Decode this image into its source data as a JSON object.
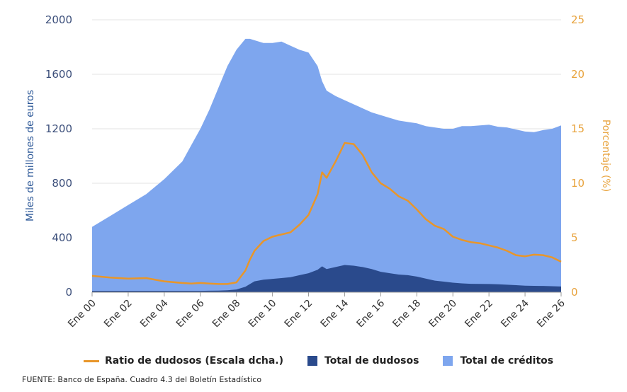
{
  "chart_data": {
    "type": "area",
    "title": "",
    "x": [
      2000,
      2001,
      2002,
      2003,
      2004,
      2005,
      2005.5,
      2006,
      2006.5,
      2007,
      2007.5,
      2008,
      2008.5,
      2008.75,
      2009,
      2009.5,
      2010,
      2010.5,
      2011,
      2011.5,
      2012,
      2012.5,
      2012.75,
      2013,
      2013.5,
      2014,
      2014.5,
      2015,
      2015.5,
      2016,
      2016.5,
      2017,
      2017.5,
      2018,
      2018.5,
      2019,
      2019.5,
      2020,
      2020.5,
      2021,
      2021.5,
      2022,
      2022.5,
      2023,
      2023.5,
      2024,
      2024.5,
      2025,
      2025.5,
      2026
    ],
    "x_ticks": [
      "Ene 00",
      "Ene 02",
      "Ene 04",
      "Ene 06",
      "Ene 08",
      "Ene 10",
      "Ene 12",
      "Ene 14",
      "Ene 16",
      "Ene 18",
      "Ene 20",
      "Ene 22",
      "Ene 24",
      "Ene 26"
    ],
    "x_tick_values": [
      2000,
      2002,
      2004,
      2006,
      2008,
      2010,
      2012,
      2014,
      2016,
      2018,
      2020,
      2022,
      2024,
      2026
    ],
    "left_axis": {
      "label": "Miles de millones de euros",
      "ylim": [
        0,
        2000
      ],
      "ticks": [
        "0",
        "400",
        "800",
        "1200",
        "1600",
        "2000"
      ],
      "tick_values": [
        0,
        400,
        800,
        1200,
        1600,
        2000
      ]
    },
    "right_axis": {
      "label": "Porcentaje (%)",
      "ylim": [
        0,
        25
      ],
      "ticks": [
        "0",
        "5",
        "10",
        "15",
        "20",
        "25"
      ],
      "tick_values": [
        0,
        5,
        10,
        15,
        20,
        25
      ]
    },
    "series": [
      {
        "name": "Total de créditos",
        "axis": "left",
        "color": "#7ea6ee",
        "values": [
          480,
          560,
          640,
          720,
          830,
          960,
          1080,
          1200,
          1340,
          1500,
          1660,
          1780,
          1860,
          1860,
          1850,
          1830,
          1830,
          1840,
          1810,
          1780,
          1760,
          1660,
          1550,
          1480,
          1440,
          1410,
          1380,
          1350,
          1320,
          1300,
          1280,
          1260,
          1250,
          1240,
          1220,
          1210,
          1200,
          1200,
          1220,
          1220,
          1225,
          1230,
          1215,
          1210,
          1195,
          1180,
          1175,
          1190,
          1200,
          1225
        ]
      },
      {
        "name": "Total de dudosos",
        "axis": "left",
        "color": "#2a4a8c",
        "values": [
          10,
          10,
          10,
          10,
          10,
          10,
          10,
          10,
          11,
          12,
          14,
          20,
          40,
          60,
          80,
          92,
          98,
          104,
          110,
          125,
          140,
          165,
          190,
          170,
          185,
          200,
          195,
          185,
          170,
          150,
          140,
          130,
          125,
          115,
          100,
          85,
          78,
          70,
          65,
          62,
          61,
          60,
          58,
          55,
          52,
          48,
          47,
          46,
          44,
          42
        ]
      },
      {
        "name": "Ratio de dudosos (Escala dcha.)",
        "axis": "right",
        "color": "#e8962a",
        "values": [
          1.5,
          1.35,
          1.25,
          1.3,
          1.0,
          0.85,
          0.8,
          0.85,
          0.8,
          0.75,
          0.75,
          0.9,
          2.0,
          3.0,
          3.8,
          4.7,
          5.1,
          5.3,
          5.5,
          6.2,
          7.1,
          9.0,
          11.0,
          10.5,
          12.0,
          13.7,
          13.6,
          12.6,
          11.0,
          10.0,
          9.5,
          8.8,
          8.4,
          7.6,
          6.7,
          6.1,
          5.8,
          5.1,
          4.8,
          4.6,
          4.5,
          4.3,
          4.1,
          3.8,
          3.4,
          3.3,
          3.45,
          3.4,
          3.2,
          2.8
        ]
      }
    ]
  },
  "legend": [
    {
      "label": "Ratio de dudosos (Escala dcha.)",
      "kind": "line",
      "color": "#e8962a"
    },
    {
      "label": "Total de dudosos",
      "kind": "box",
      "color": "#2a4a8c"
    },
    {
      "label": "Total de créditos",
      "kind": "box",
      "color": "#7ea6ee"
    }
  ],
  "source": "FUENTE: Banco de España. Cuadro 4.3 del Boletín Estadístico"
}
